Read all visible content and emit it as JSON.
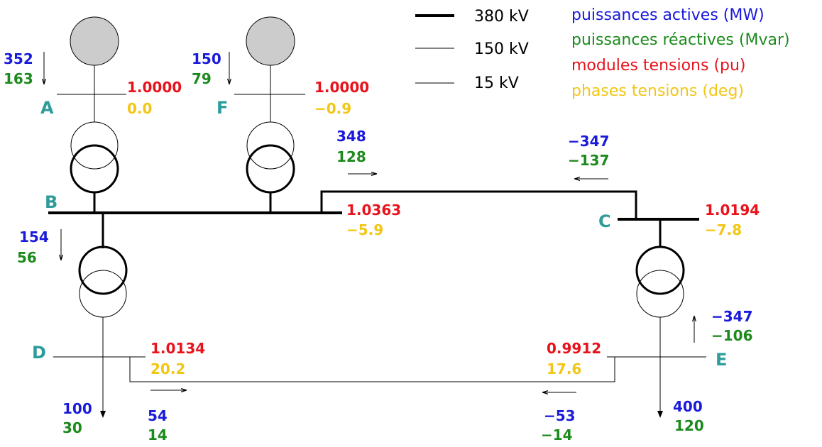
{
  "colors": {
    "active": "#1a1adb",
    "reactive": "#1c8a1c",
    "voltage": "#e8121b",
    "phase": "#f2c614",
    "bus": "#2f9c9c",
    "generator_fill": "#cccccc"
  },
  "legend": {
    "line_380": "380 kV",
    "line_150": "150 kV",
    "line_15": "15 kV",
    "active": "puissances actives (MW)",
    "reactive": "puissances réactives (Mvar)",
    "voltage": "modules tensions (pu)",
    "phase": "phases tensions (deg)"
  },
  "buses": {
    "A": {
      "name": "A",
      "v": "1.0000",
      "phase": "0.0"
    },
    "F": {
      "name": "F",
      "v": "1.0000",
      "phase": "−0.9"
    },
    "B": {
      "name": "B",
      "v": "1.0363",
      "phase": "−5.9"
    },
    "C": {
      "name": "C",
      "v": "1.0194",
      "phase": "−7.8"
    },
    "D": {
      "name": "D",
      "v": "1.0134",
      "phase": "20.2"
    },
    "E": {
      "name": "E",
      "v": "0.9912",
      "phase": "17.6"
    }
  },
  "flows": {
    "gen_A": {
      "p": "352",
      "q": "163"
    },
    "gen_F": {
      "p": "150",
      "q": "79"
    },
    "trafo_BD": {
      "p": "154",
      "q": "56"
    },
    "line_BC_from": {
      "p": "348",
      "q": "128"
    },
    "line_BC_to": {
      "p": "−347",
      "q": "−137"
    },
    "trafo_EC": {
      "p": "−347",
      "q": "−106"
    },
    "load_D": {
      "p": "100",
      "q": "30"
    },
    "load_E": {
      "p": "400",
      "q": "120"
    },
    "line_DE_from": {
      "p": "54",
      "q": "14"
    },
    "line_DE_to": {
      "p": "−53",
      "q": "−14"
    }
  }
}
